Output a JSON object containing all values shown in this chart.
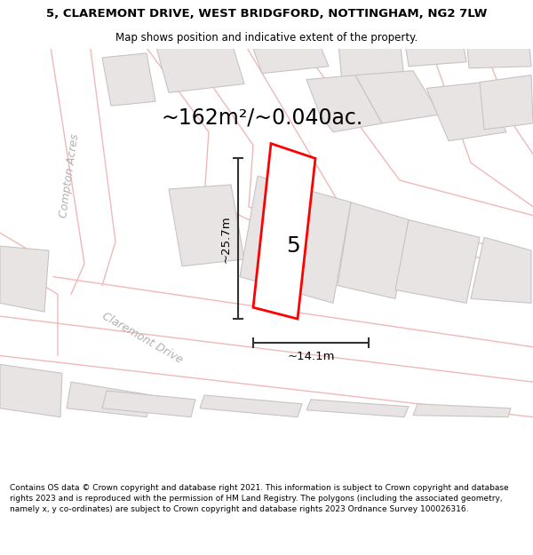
{
  "title_line1": "5, CLAREMONT DRIVE, WEST BRIDGFORD, NOTTINGHAM, NG2 7LW",
  "title_line2": "Map shows position and indicative extent of the property.",
  "footer_text": "Contains OS data © Crown copyright and database right 2021. This information is subject to Crown copyright and database rights 2023 and is reproduced with the permission of HM Land Registry. The polygons (including the associated geometry, namely x, y co-ordinates) are subject to Crown copyright and database rights 2023 Ordnance Survey 100026316.",
  "area_label": "~162m²/~0.040ac.",
  "number_label": "5",
  "dim_horizontal": "~14.1m",
  "dim_vertical": "~25.7m",
  "map_bg": "#faf8f8",
  "road_stroke": "#f0b8b8",
  "building_fill": "#e8e4e4",
  "building_stroke": "#c8c4c4",
  "highlight_fill": "#ffffff",
  "highlight_stroke": "#ff0000",
  "road_label_color": "#b0b0b0",
  "dim_line_color": "#333333",
  "title_fontsize": 9.5,
  "subtitle_fontsize": 8.5,
  "area_fontsize": 17,
  "number_fontsize": 18,
  "road_label_fontsize": 9,
  "footer_fontsize": 6.5
}
